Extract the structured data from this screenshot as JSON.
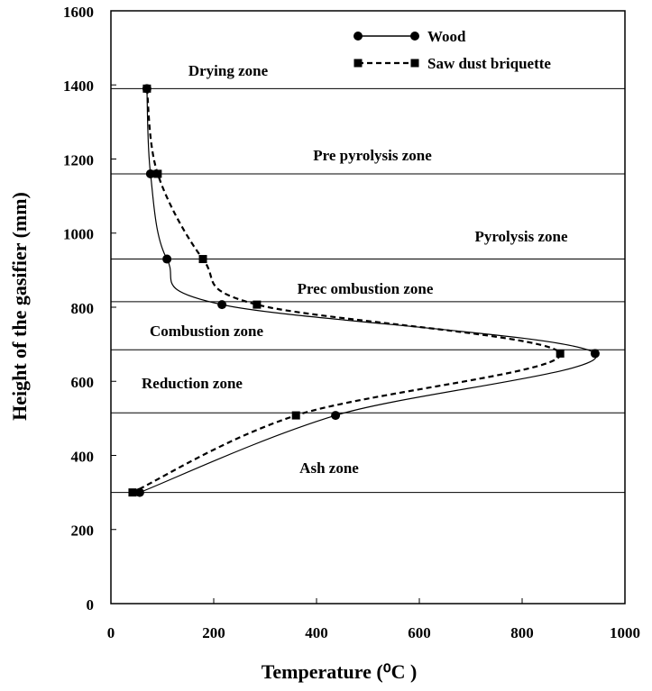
{
  "chart_data": {
    "type": "line",
    "xlabel": "Temperature (⁰C )",
    "ylabel": "Height of the gasifier  (mm)",
    "xlim": [
      0,
      1000
    ],
    "xticks": [
      0,
      200,
      400,
      600,
      800,
      1000
    ],
    "ylim": [
      0,
      1600
    ],
    "yticks": [
      0,
      200,
      400,
      600,
      800,
      1000,
      1200,
      1400,
      1600
    ],
    "zone_lines": [
      1390,
      1160,
      930,
      815,
      685,
      515,
      300
    ],
    "annotations": [
      "Drying zone",
      "Pre pyrolysis zone",
      "Pyrolysis zone",
      "Prec ombustion zone",
      "Combustion zone",
      "Reduction zone",
      "Ash zone"
    ],
    "legend": "upper right",
    "series": [
      {
        "name": "Wood",
        "color": "#000000",
        "x": [
          70,
          77,
          109,
          216,
          942,
          437,
          56
        ],
        "values": [
          1390,
          1160,
          930,
          807,
          675,
          508,
          300
        ]
      },
      {
        "name": "Saw dust briquette",
        "color": "#000000",
        "x": [
          70,
          91,
          179,
          284,
          874,
          360,
          42
        ],
        "values": [
          1390,
          1160,
          930,
          807,
          675,
          508,
          300
        ]
      }
    ]
  }
}
